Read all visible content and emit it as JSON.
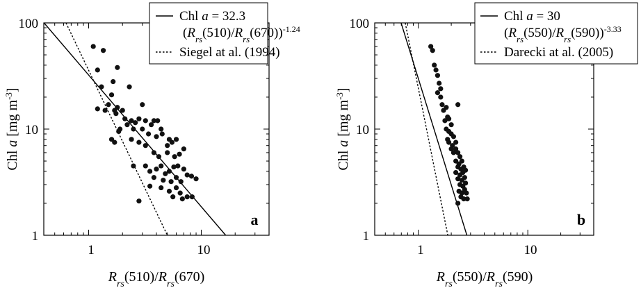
{
  "chart_data": [
    {
      "type": "scatter",
      "panel": "a",
      "xscale": "log",
      "yscale": "log",
      "xlim": [
        0.4,
        40
      ],
      "ylim": [
        1,
        100
      ],
      "xticks": [
        "1",
        "10"
      ],
      "yticks": [
        "1",
        "10",
        "100"
      ],
      "xlabel": "Rrs(510)/Rrs(670)",
      "ylabel": "Chl a [mg m-3]",
      "legend_position": "top-right",
      "legend": [
        {
          "style": "solid",
          "line1": "Chl a = 32.3",
          "line2": "(Rrs(510)/Rrs(670))-1.24"
        },
        {
          "style": "dotted",
          "line1": "Siegel at al. (1994)",
          "line2": ""
        }
      ],
      "fit_line": {
        "coef": 32.3,
        "exp": -1.24
      },
      "reference_line": {
        "points": [
          [
            0.63,
            100
          ],
          [
            5.0,
            1.0
          ]
        ]
      },
      "points": [
        [
          1.1,
          60
        ],
        [
          1.35,
          55
        ],
        [
          1.2,
          36
        ],
        [
          1.8,
          38
        ],
        [
          1.65,
          28
        ],
        [
          1.3,
          25
        ],
        [
          1.6,
          21
        ],
        [
          1.5,
          17
        ],
        [
          1.2,
          15.5
        ],
        [
          1.4,
          15
        ],
        [
          1.7,
          15
        ],
        [
          1.8,
          16
        ],
        [
          1.75,
          14
        ],
        [
          2.3,
          25
        ],
        [
          2.0,
          15
        ],
        [
          3.0,
          17
        ],
        [
          1.6,
          8
        ],
        [
          1.7,
          7.5
        ],
        [
          1.85,
          9.5
        ],
        [
          1.9,
          10
        ],
        [
          2.1,
          12.5
        ],
        [
          2.4,
          12
        ],
        [
          2.6,
          11.5
        ],
        [
          2.8,
          12.5
        ],
        [
          3.2,
          12
        ],
        [
          2.2,
          11
        ],
        [
          2.5,
          10
        ],
        [
          3.0,
          10
        ],
        [
          3.4,
          9
        ],
        [
          3.6,
          11
        ],
        [
          3.8,
          12
        ],
        [
          2.4,
          8
        ],
        [
          2.8,
          7.5
        ],
        [
          3.2,
          7
        ],
        [
          4.0,
          8.5
        ],
        [
          4.5,
          9
        ],
        [
          5.0,
          7
        ],
        [
          5.5,
          7.5
        ],
        [
          6.0,
          8
        ],
        [
          7.0,
          6.5
        ],
        [
          5.2,
          8
        ],
        [
          4.1,
          12
        ],
        [
          3.8,
          6
        ],
        [
          4.2,
          5.5
        ],
        [
          5.0,
          6
        ],
        [
          5.8,
          5.5
        ],
        [
          6.4,
          5.8
        ],
        [
          4.4,
          10
        ],
        [
          2.5,
          4.5
        ],
        [
          3.2,
          4.5
        ],
        [
          3.5,
          4
        ],
        [
          4.0,
          4.2
        ],
        [
          4.4,
          4.5
        ],
        [
          4.8,
          3.8
        ],
        [
          5.2,
          4.0
        ],
        [
          5.7,
          4.4
        ],
        [
          6.2,
          4.5
        ],
        [
          7.0,
          4.2
        ],
        [
          3.8,
          3.5
        ],
        [
          4.6,
          3.3
        ],
        [
          5.4,
          3.2
        ],
        [
          6.0,
          3.5
        ],
        [
          6.6,
          3.2
        ],
        [
          7.5,
          3.7
        ],
        [
          8.2,
          3.6
        ],
        [
          9.0,
          3.4
        ],
        [
          3.5,
          2.9
        ],
        [
          4.4,
          2.8
        ],
        [
          5.2,
          2.6
        ],
        [
          6.0,
          2.8
        ],
        [
          5.6,
          2.3
        ],
        [
          6.5,
          2.5
        ],
        [
          7.5,
          2.3
        ],
        [
          8.3,
          2.3
        ],
        [
          2.8,
          2.1
        ],
        [
          6.8,
          2.2
        ]
      ]
    },
    {
      "type": "scatter",
      "panel": "b",
      "xscale": "log",
      "yscale": "log",
      "xlim": [
        0.4,
        40
      ],
      "ylim": [
        1,
        100
      ],
      "xticks": [
        "1",
        "10"
      ],
      "yticks": [
        "1",
        "10",
        "100"
      ],
      "xlabel": "Rrs(550)/Rrs(590)",
      "ylabel": "Chl a [mg m-3]",
      "legend_position": "top-right",
      "legend": [
        {
          "style": "solid",
          "line1": "Chl a = 30",
          "line2": "(Rrs(550)/Rrs(590))-3.33"
        },
        {
          "style": "dotted",
          "line1": "Darecki at al. (2005)",
          "line2": ""
        }
      ],
      "fit_line": {
        "coef": 30,
        "exp": -3.33
      },
      "reference_line": {
        "points": [
          [
            0.76,
            100
          ],
          [
            1.86,
            1.0
          ]
        ]
      },
      "points": [
        [
          1.3,
          60
        ],
        [
          1.35,
          55
        ],
        [
          1.4,
          40
        ],
        [
          1.45,
          36
        ],
        [
          1.5,
          32
        ],
        [
          1.55,
          27
        ],
        [
          1.6,
          24
        ],
        [
          1.5,
          22
        ],
        [
          1.6,
          20
        ],
        [
          1.65,
          17
        ],
        [
          1.7,
          15
        ],
        [
          1.8,
          16
        ],
        [
          2.3,
          17
        ],
        [
          1.85,
          13
        ],
        [
          1.9,
          12.5
        ],
        [
          2.0,
          11
        ],
        [
          1.75,
          12
        ],
        [
          1.8,
          10
        ],
        [
          1.9,
          9.5
        ],
        [
          2.0,
          9
        ],
        [
          2.1,
          8.5
        ],
        [
          1.85,
          8
        ],
        [
          1.9,
          7.5
        ],
        [
          2.05,
          7
        ],
        [
          2.2,
          7.5
        ],
        [
          2.0,
          6.5
        ],
        [
          2.1,
          6
        ],
        [
          2.2,
          6.5
        ],
        [
          2.3,
          6
        ],
        [
          2.4,
          5.5
        ],
        [
          2.2,
          5
        ],
        [
          2.35,
          4.7
        ],
        [
          2.5,
          5
        ],
        [
          2.3,
          4.4
        ],
        [
          2.45,
          4.2
        ],
        [
          2.6,
          4.4
        ],
        [
          2.2,
          3.9
        ],
        [
          2.4,
          3.7
        ],
        [
          2.55,
          3.9
        ],
        [
          2.7,
          4.1
        ],
        [
          2.3,
          3.4
        ],
        [
          2.5,
          3.3
        ],
        [
          2.65,
          3.5
        ],
        [
          2.4,
          3.0
        ],
        [
          2.55,
          2.9
        ],
        [
          2.7,
          3.1
        ],
        [
          2.35,
          2.6
        ],
        [
          2.5,
          2.5
        ],
        [
          2.65,
          2.7
        ],
        [
          2.75,
          2.5
        ],
        [
          2.45,
          2.3
        ],
        [
          2.6,
          2.2
        ],
        [
          2.8,
          2.2
        ],
        [
          2.3,
          2.0
        ]
      ]
    }
  ]
}
